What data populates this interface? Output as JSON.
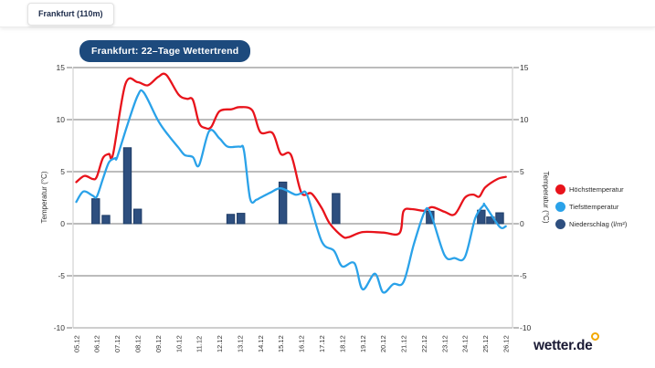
{
  "header": {
    "location_tab": "Frankfurt (110m)"
  },
  "logo": {
    "text": "wetter.de",
    "dot_color": "#f2a800"
  },
  "chart_data": {
    "type": "line+bar",
    "title": "Frankfurt: 22–Tage Wettertrend",
    "x_labels": [
      "05.12",
      "06.12",
      "07.12",
      "08.12",
      "09.12",
      "10.12",
      "11.12",
      "12.12",
      "13.12",
      "14.12",
      "15.12",
      "16.12",
      "17.12",
      "18.12",
      "19.12",
      "20.12",
      "21.12",
      "22.12",
      "23.12",
      "24.12",
      "25.12",
      "26.12"
    ],
    "ylabel_left": "Temperatur (°C)",
    "ylabel_right": "Temperatur (°C)",
    "y_ticks": [
      15,
      10,
      5,
      0,
      -5,
      -10
    ],
    "y_range": [
      -10,
      15
    ],
    "grid": true,
    "legend_position": "right",
    "colors": {
      "grid": "#4d4d4d",
      "axis": "#c9c9c9",
      "baseline": "#b0b0b0",
      "text": "#333333"
    },
    "series": [
      {
        "name": "Höchsttemperatur",
        "type": "line",
        "color": "#e8131b",
        "points": [
          [
            0,
            4.0
          ],
          [
            0.4,
            4.6
          ],
          [
            0.8,
            4.3
          ],
          [
            1,
            4.5
          ],
          [
            1.3,
            6.3
          ],
          [
            1.6,
            6.7
          ],
          [
            1.8,
            6.7
          ],
          [
            2.4,
            13.4
          ],
          [
            3,
            13.6
          ],
          [
            3.5,
            13.3
          ],
          [
            4,
            14.1
          ],
          [
            4.4,
            14.3
          ],
          [
            5,
            12.4
          ],
          [
            5.4,
            12.0
          ],
          [
            5.7,
            11.9
          ],
          [
            6,
            9.7
          ],
          [
            6.3,
            9.2
          ],
          [
            6.6,
            9.3
          ],
          [
            7,
            10.8
          ],
          [
            7.6,
            11.0
          ],
          [
            8,
            11.2
          ],
          [
            8.6,
            10.9
          ],
          [
            9,
            8.8
          ],
          [
            9.6,
            8.7
          ],
          [
            10,
            6.7
          ],
          [
            10.5,
            6.6
          ],
          [
            11,
            3.0
          ],
          [
            11.5,
            2.9
          ],
          [
            12,
            1.5
          ],
          [
            12.4,
            0.0
          ],
          [
            13,
            -1.2
          ],
          [
            13.3,
            -1.3
          ],
          [
            14,
            -0.8
          ],
          [
            15,
            -0.85
          ],
          [
            15.8,
            -0.9
          ],
          [
            16,
            1.2
          ],
          [
            16.4,
            1.4
          ],
          [
            17,
            1.25
          ],
          [
            17.4,
            1.6
          ],
          [
            18,
            1.15
          ],
          [
            18.5,
            0.9
          ],
          [
            19,
            2.5
          ],
          [
            19.4,
            2.8
          ],
          [
            19.7,
            2.6
          ],
          [
            20,
            3.5
          ],
          [
            20.6,
            4.3
          ],
          [
            21,
            4.5
          ]
        ]
      },
      {
        "name": "Tiefsttemperatur",
        "type": "line",
        "color": "#2aa2e9",
        "points": [
          [
            0,
            2.1
          ],
          [
            0.35,
            3.1
          ],
          [
            0.8,
            2.7
          ],
          [
            1,
            2.6
          ],
          [
            1.3,
            4.3
          ],
          [
            1.6,
            5.9
          ],
          [
            1.9,
            6.3
          ],
          [
            2,
            6.4
          ],
          [
            2.5,
            9.5
          ],
          [
            3,
            12.3
          ],
          [
            3.3,
            12.6
          ],
          [
            4,
            9.9
          ],
          [
            4.5,
            8.5
          ],
          [
            5,
            7.3
          ],
          [
            5.3,
            6.6
          ],
          [
            5.7,
            6.4
          ],
          [
            6,
            5.6
          ],
          [
            6.5,
            8.9
          ],
          [
            7,
            8.2
          ],
          [
            7.4,
            7.4
          ],
          [
            8,
            7.4
          ],
          [
            8.2,
            7.0
          ],
          [
            8.5,
            2.4
          ],
          [
            8.8,
            2.3
          ],
          [
            9,
            2.5
          ],
          [
            9.5,
            3.0
          ],
          [
            10,
            3.4
          ],
          [
            10.7,
            2.8
          ],
          [
            11,
            2.9
          ],
          [
            11.3,
            2.7
          ],
          [
            12,
            -1.7
          ],
          [
            12.6,
            -2.6
          ],
          [
            13,
            -4.1
          ],
          [
            13.6,
            -3.8
          ],
          [
            14,
            -6.3
          ],
          [
            14.6,
            -4.8
          ],
          [
            15,
            -6.6
          ],
          [
            15.5,
            -5.8
          ],
          [
            16,
            -5.6
          ],
          [
            16.5,
            -2.0
          ],
          [
            17,
            1.0
          ],
          [
            17.3,
            1.1
          ],
          [
            18,
            -3.0
          ],
          [
            18.5,
            -3.3
          ],
          [
            19,
            -3.2
          ],
          [
            19.5,
            0.5
          ],
          [
            19.9,
            1.75
          ],
          [
            20,
            1.7
          ],
          [
            20.7,
            -0.3
          ],
          [
            21,
            -0.25
          ]
        ]
      },
      {
        "name": "Niederschlag (l/m²)",
        "type": "bar",
        "color": "#2e4f7f",
        "stroke": "#1e3c66",
        "points": [
          [
            0.95,
            2.4
          ],
          [
            1.45,
            0.8
          ],
          [
            2.5,
            7.3
          ],
          [
            3.0,
            1.4
          ],
          [
            7.55,
            0.9
          ],
          [
            8.05,
            1.0
          ],
          [
            10.1,
            4.0
          ],
          [
            12.7,
            2.9
          ],
          [
            17.3,
            1.2
          ],
          [
            19.8,
            1.3
          ],
          [
            20.25,
            0.65
          ],
          [
            20.7,
            1.05
          ]
        ]
      }
    ]
  }
}
